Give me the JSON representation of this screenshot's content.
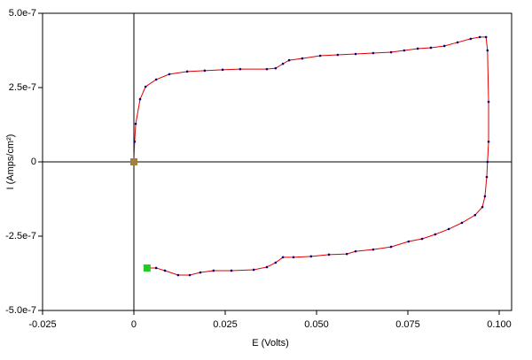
{
  "chart_data": {
    "type": "line",
    "xlabel": "E (Volts)",
    "ylabel": "I (Amps/cm²)",
    "xlim": [
      -0.025,
      0.1034
    ],
    "ylim": [
      -5e-07,
      5e-07
    ],
    "xticks": [
      -0.025,
      0,
      0.025,
      {
        "value": 0.05,
        "label": "0.050"
      },
      0.075,
      {
        "value": 0.1,
        "label": "0.100"
      }
    ],
    "yticks": [
      {
        "value": 5e-07,
        "label": "5.0e-7"
      },
      {
        "value": 2.5e-07,
        "label": "2.5e-7"
      },
      0,
      {
        "value": -2.5e-07,
        "label": "-2.5e-7"
      },
      {
        "value": -5e-07,
        "label": "-5.0e-7"
      }
    ],
    "line_color": "#e00000",
    "marker_color": "#000080",
    "start_color": "#22cc22",
    "end_color": "#a08040",
    "x": [
      0.0036,
      0.0061,
      0.0085,
      0.0121,
      0.0153,
      0.0182,
      0.0218,
      0.0267,
      0.0328,
      0.0364,
      0.0388,
      0.0408,
      0.0437,
      0.0485,
      0.0534,
      0.0583,
      0.0607,
      0.0655,
      0.0704,
      0.0752,
      0.0789,
      0.0825,
      0.0862,
      0.0898,
      0.0934,
      0.0954,
      0.0961,
      0.0966,
      0.0968,
      0.0971,
      0.0971,
      0.0968,
      0.0964,
      0.0947,
      0.0922,
      0.0886,
      0.085,
      0.0813,
      0.0777,
      0.074,
      0.0704,
      0.0655,
      0.0607,
      0.0558,
      0.051,
      0.0461,
      0.0425,
      0.0408,
      0.0388,
      0.0364,
      0.0291,
      0.0243,
      0.0194,
      0.0146,
      0.0097,
      0.0061,
      0.0032,
      0.0017,
      0.0005,
      0.0002,
      0
    ],
    "values": [
      -3.57e-07,
      -3.57e-07,
      -3.66e-07,
      -3.81e-07,
      -3.81e-07,
      -3.72e-07,
      -3.66e-07,
      -3.66e-07,
      -3.63e-07,
      -3.54e-07,
      -3.39e-07,
      -3.21e-07,
      -3.21e-07,
      -3.18e-07,
      -3.12e-07,
      -3.1e-07,
      -3.01e-07,
      -2.95e-07,
      -2.86e-07,
      -2.68e-07,
      -2.59e-07,
      -2.44e-07,
      -2.26e-07,
      -2.05e-07,
      -1.79e-07,
      -1.52e-07,
      -1.16e-07,
      -5.1e-08,
      0,
      6.8e-08,
      2.02e-07,
      3.75e-07,
      4.2e-07,
      4.2e-07,
      4.14e-07,
      4.02e-07,
      3.9e-07,
      3.84e-07,
      3.81e-07,
      3.75e-07,
      3.69e-07,
      3.66e-07,
      3.63e-07,
      3.6e-07,
      3.57e-07,
      3.48e-07,
      3.42e-07,
      3.3e-07,
      3.15e-07,
      3.12e-07,
      3.12e-07,
      3.1e-07,
      3.07e-07,
      3.04e-07,
      2.95e-07,
      2.77e-07,
      2.53e-07,
      2.11e-07,
      1.28e-07,
      6.8e-08,
      0
    ]
  }
}
